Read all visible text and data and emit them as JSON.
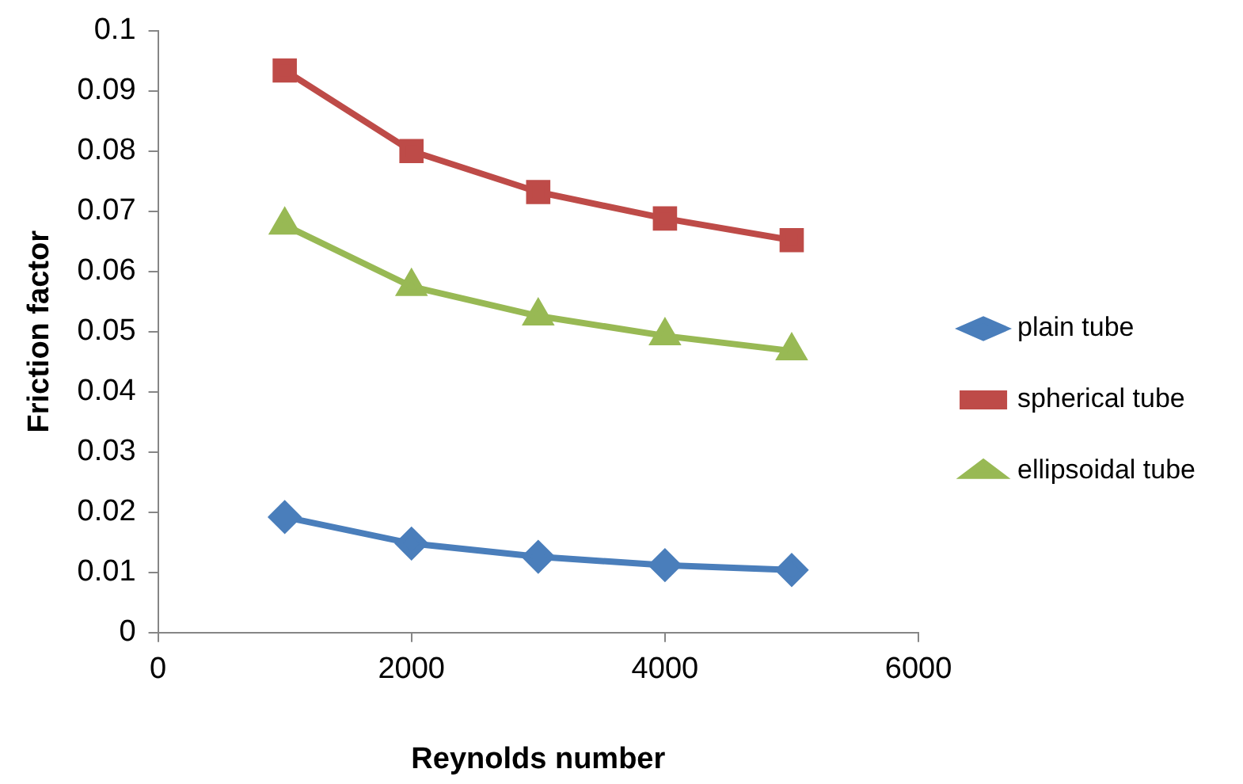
{
  "chart_data": {
    "type": "line",
    "xlabel": "Reynolds number",
    "ylabel": "Friction factor",
    "x": [
      1000,
      2000,
      3000,
      4000,
      5000
    ],
    "xlim": [
      0,
      6000
    ],
    "xticks": [
      0,
      2000,
      4000,
      6000
    ],
    "ylim": [
      0,
      0.1
    ],
    "yticks": [
      0,
      0.01,
      0.02,
      0.03,
      0.04,
      0.05,
      0.06,
      0.07,
      0.08,
      0.09,
      0.1
    ],
    "grid": false,
    "legend": "right",
    "line_style": "solid",
    "series": [
      {
        "name": "plain tube",
        "color": "#4a7ebb",
        "marker": "diamond",
        "values": [
          0.0192,
          0.0148,
          0.0126,
          0.0112,
          0.0104
        ]
      },
      {
        "name": "spherical tube",
        "color": "#be4b48",
        "marker": "square",
        "values": [
          0.0934,
          0.08,
          0.0732,
          0.0688,
          0.0652
        ]
      },
      {
        "name": "ellipsoidal tube",
        "color": "#98b954",
        "marker": "triangle",
        "values": [
          0.0677,
          0.0575,
          0.0526,
          0.0493,
          0.0468
        ]
      }
    ]
  }
}
